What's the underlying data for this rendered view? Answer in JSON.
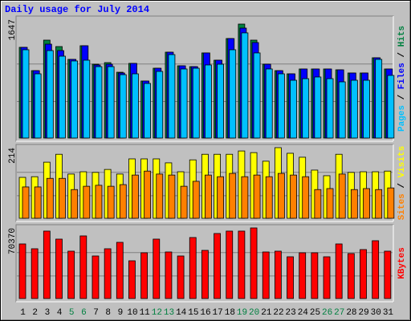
{
  "chart_data": [
    {
      "type": "bar",
      "title": "Daily usage for July 2014",
      "legend_separator": " / ",
      "ylim": [
        0,
        1647
      ],
      "yticks": [
        1647
      ],
      "series": [
        {
          "name": "Pages",
          "color": "#00c0ff",
          "values": [
            1276,
            928,
            1264,
            1183,
            1114,
            1125,
            1032,
            1032,
            916,
            928,
            789,
            963,
            1206,
            998,
            1009,
            1056,
            1067,
            1276,
            1520,
            1230,
            998,
            928,
            835,
            858,
            882,
            858,
            812,
            835,
            835,
            1137,
            905
          ]
        },
        {
          "name": "Files",
          "color": "#0000ff",
          "values": [
            1311,
            974,
            1357,
            1264,
            1137,
            1334,
            1056,
            1067,
            940,
            1079,
            824,
            1009,
            1241,
            1044,
            1032,
            1230,
            1125,
            1438,
            1589,
            1380,
            1067,
            974,
            928,
            998,
            998,
            998,
            986,
            940,
            940,
            1160,
            998
          ]
        },
        {
          "name": "Hits",
          "color": "#008040",
          "values": [
            1311,
            974,
            1415,
            1322,
            1137,
            1334,
            1067,
            1090,
            951,
            1079,
            824,
            1009,
            1241,
            1044,
            1032,
            1230,
            1125,
            1438,
            1647,
            1415,
            1067,
            974,
            928,
            998,
            998,
            998,
            986,
            940,
            940,
            1160,
            998
          ]
        }
      ]
    },
    {
      "type": "bar",
      "legend_separator": " / ",
      "ylim": [
        0,
        214
      ],
      "yticks": [
        214
      ],
      "series": [
        {
          "name": "Sites",
          "color": "#ff8000",
          "values": [
            95,
            95,
            121,
            121,
            87,
            97,
            100,
            97,
            102,
            131,
            143,
            134,
            131,
            97,
            112,
            131,
            126,
            136,
            126,
            131,
            126,
            136,
            131,
            126,
            87,
            90,
            134,
            87,
            90,
            87,
            92
          ]
        },
        {
          "name": "Visits",
          "color": "#ffff00",
          "values": [
            124,
            126,
            170,
            194,
            134,
            141,
            139,
            148,
            134,
            180,
            180,
            180,
            168,
            141,
            177,
            194,
            194,
            194,
            204,
            199,
            173,
            214,
            197,
            185,
            146,
            129,
            194,
            139,
            141,
            141,
            143
          ]
        }
      ]
    },
    {
      "type": "bar",
      "ylim": [
        0,
        70370
      ],
      "yticks": [
        70370
      ],
      "series": [
        {
          "name": "KBytes",
          "color": "#ff0000",
          "values": [
            54400,
            49600,
            67200,
            59200,
            47200,
            62400,
            42400,
            49600,
            56000,
            37600,
            45600,
            59200,
            46400,
            42400,
            60800,
            48000,
            64800,
            67200,
            67200,
            70370,
            46400,
            47200,
            41600,
            45600,
            45600,
            41600,
            54400,
            44800,
            48800,
            57600,
            47200
          ]
        }
      ],
      "categories": [
        "1",
        "2",
        "3",
        "4",
        "5",
        "6",
        "7",
        "8",
        "9",
        "10",
        "11",
        "12",
        "13",
        "14",
        "15",
        "16",
        "17",
        "18",
        "19",
        "20",
        "21",
        "22",
        "23",
        "24",
        "25",
        "26",
        "27",
        "28",
        "29",
        "30",
        "31"
      ],
      "highlighted": [
        "5",
        "6",
        "12",
        "13",
        "19",
        "20",
        "26",
        "27"
      ],
      "highlight_color": "#008040"
    }
  ]
}
